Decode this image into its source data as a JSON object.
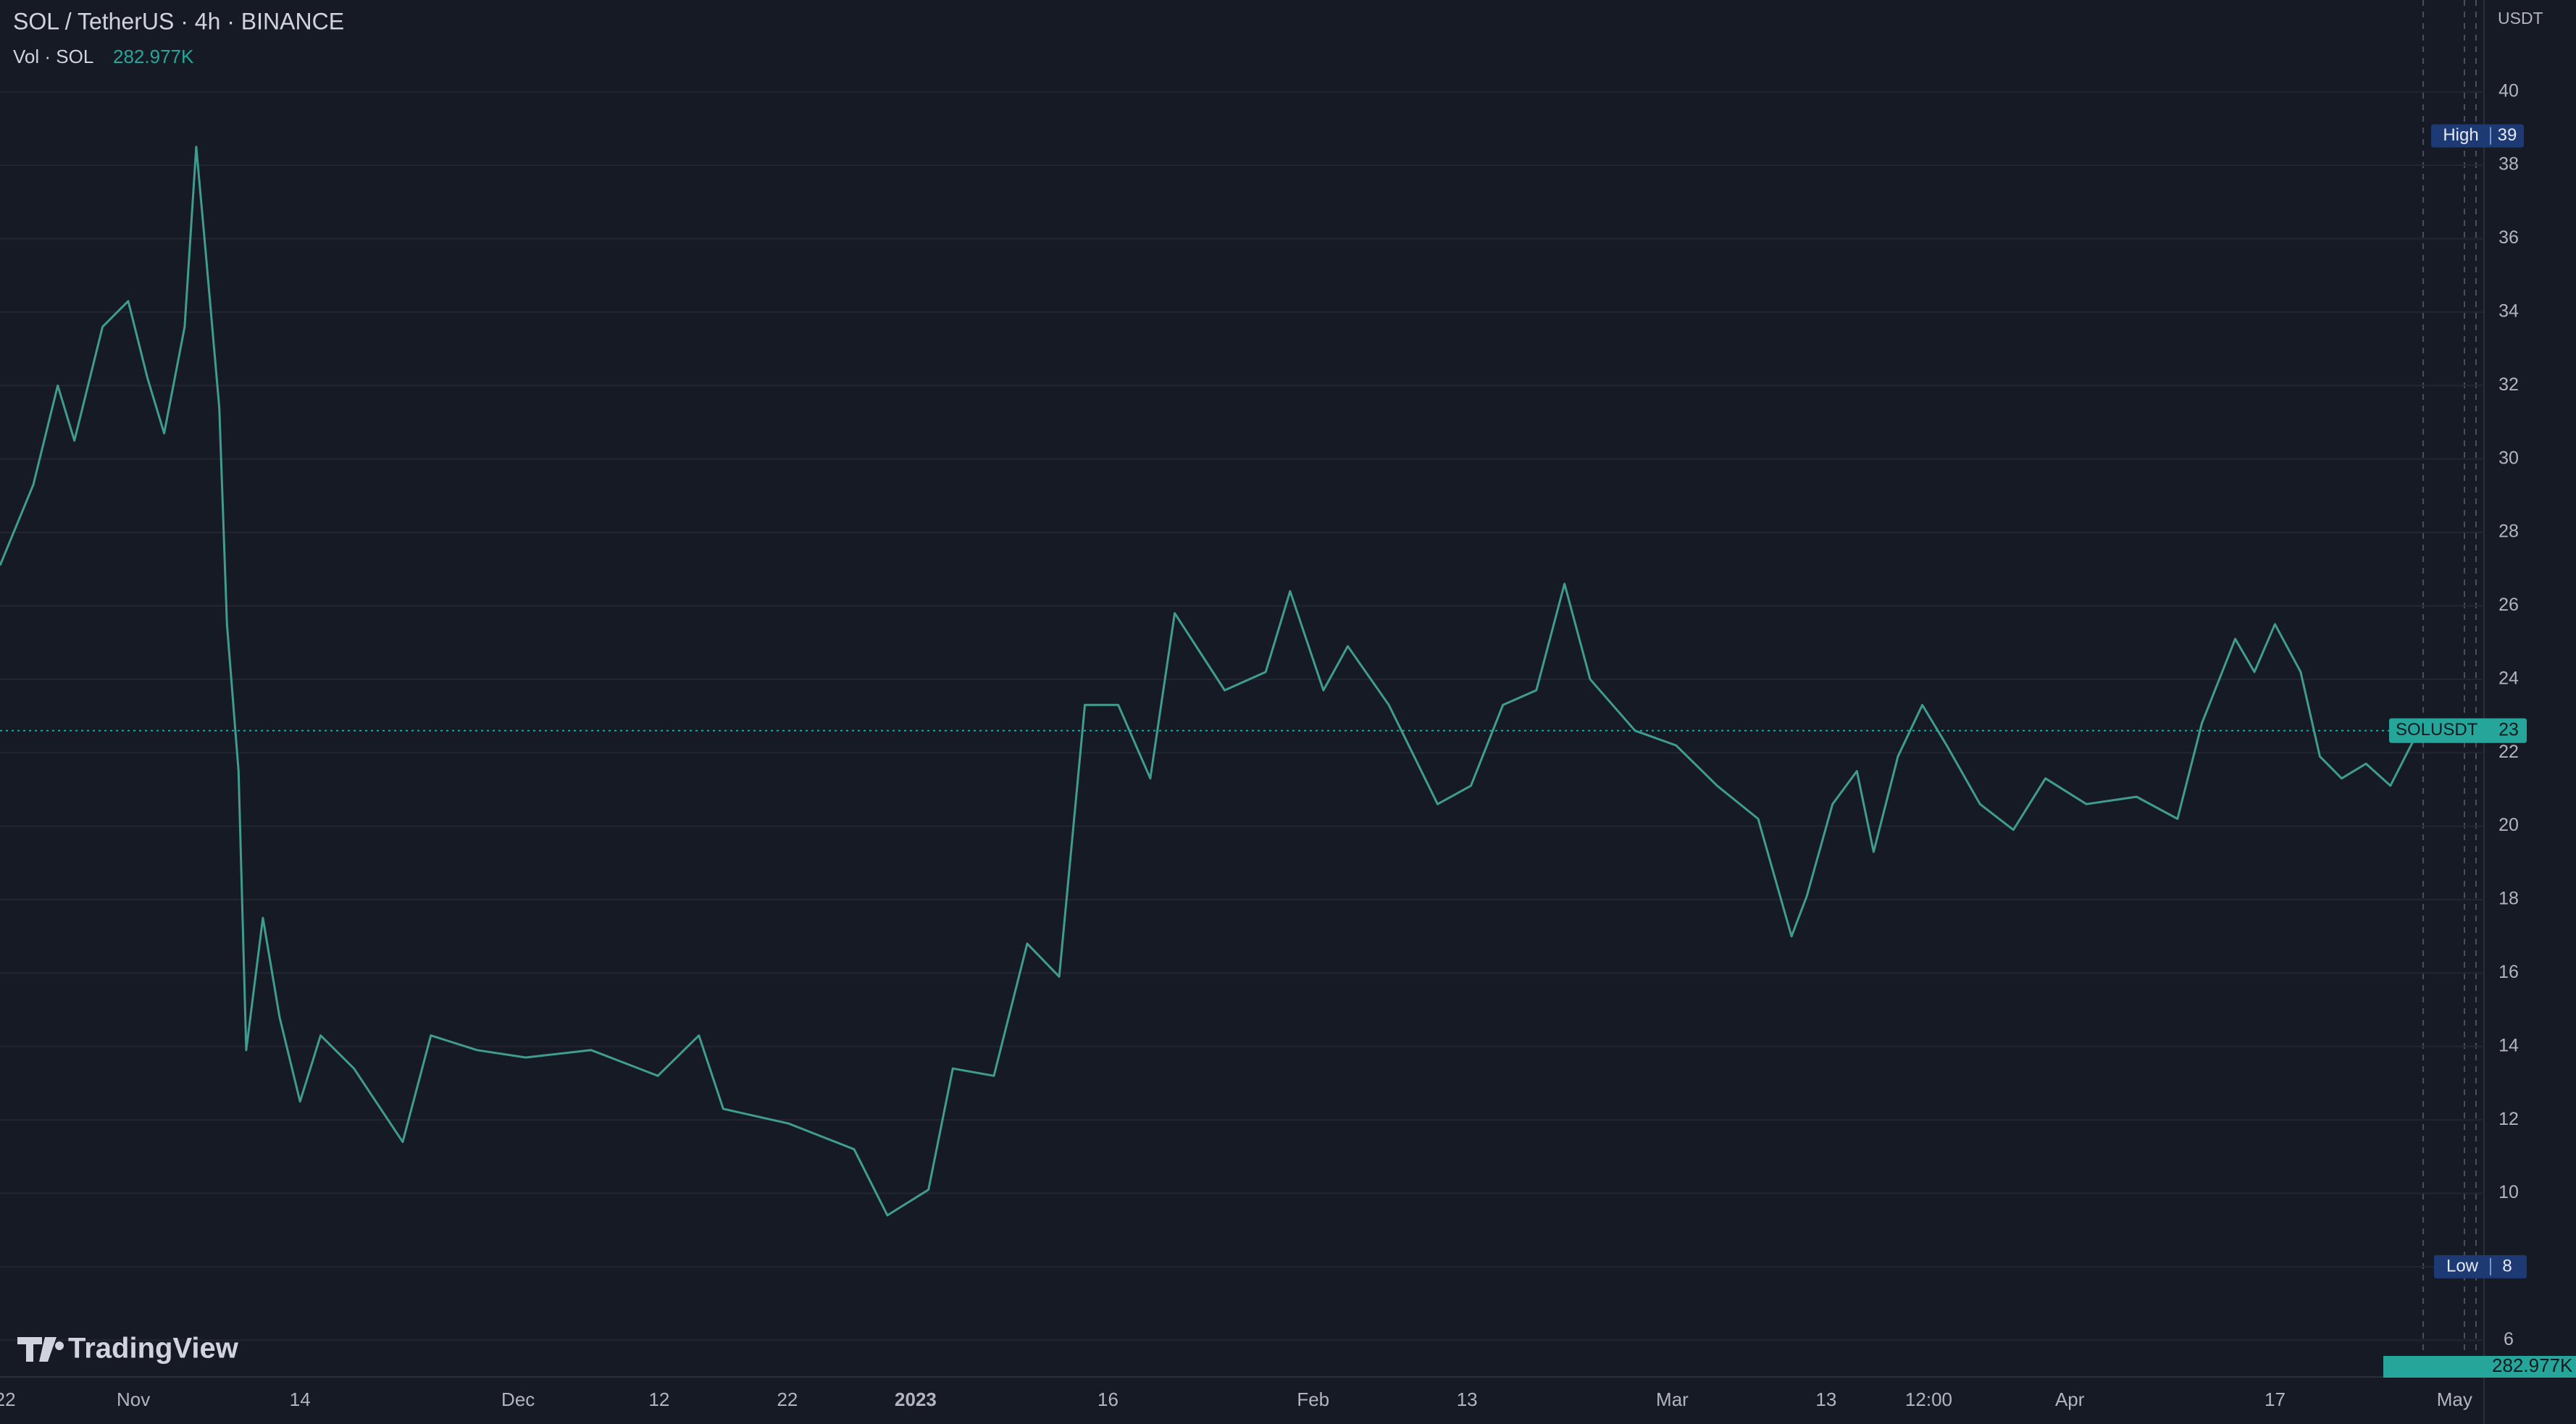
{
  "chart_data": {
    "type": "line",
    "title": "SOL / TetherUS · 4h · BINANCE",
    "volume_label": "Vol · SOL",
    "volume_value": "282.977K",
    "currency": "USDT",
    "brand": "TradingView",
    "color": "#3f9c8f",
    "grid": true,
    "x": [
      -0.4,
      2.2,
      4.1,
      5.4,
      7.6,
      9.6,
      11.1,
      12.4,
      14,
      14.9,
      15.6,
      16.7,
      17.3,
      18.2,
      18.8,
      20.1,
      21.4,
      23,
      24.6,
      27.2,
      31,
      33.2,
      36.8,
      40.6,
      45.7,
      50.9,
      54.1,
      56,
      61.1,
      66.2,
      68.8,
      72,
      73.9,
      77.1,
      79.7,
      82.2,
      84.2,
      86.8,
      89.3,
      91.2,
      95.1,
      98.3,
      100.2,
      102.8,
      104.7,
      107.9,
      111.7,
      114.3,
      116.8,
      119.4,
      121.6,
      123.6,
      127.1,
      130.3,
      133.5,
      136.7,
      139.3,
      140.5,
      142.5,
      144.4,
      145.7,
      147.6,
      149.5,
      151.4,
      154,
      156.6,
      159.1,
      162.3,
      166.2,
      169.4,
      171.3,
      173.9,
      175.4,
      177,
      179,
      180.5,
      182.2,
      184.1,
      186,
      187.9
    ],
    "values": [
      27.1,
      29.3,
      32,
      30.5,
      33.6,
      34.3,
      32.2,
      30.7,
      33.6,
      38.5,
      35.8,
      31.4,
      25.5,
      21.5,
      13.9,
      17.5,
      14.8,
      12.5,
      14.3,
      13.4,
      11.4,
      14.3,
      13.9,
      13.7,
      13.9,
      13.2,
      14.3,
      12.3,
      11.9,
      11.2,
      9.4,
      10.1,
      13.4,
      13.2,
      16.8,
      15.9,
      23.3,
      23.3,
      21.3,
      25.8,
      23.7,
      24.2,
      26.4,
      23.7,
      24.9,
      23.3,
      20.6,
      21.1,
      23.3,
      23.7,
      26.6,
      24,
      22.6,
      22.2,
      21.1,
      20.2,
      17,
      18.1,
      20.6,
      21.5,
      19.3,
      21.9,
      23.3,
      22.2,
      20.6,
      19.9,
      21.3,
      20.6,
      20.8,
      20.2,
      22.8,
      25.1,
      24.2,
      25.5,
      24.2,
      21.9,
      21.3,
      21.7,
      21.1,
      22.4
    ],
    "xlim": [
      -0.4,
      193.3
    ],
    "ylim": [
      5.0,
      42.5
    ],
    "yticks": [
      6,
      8,
      10,
      12,
      14,
      16,
      18,
      20,
      22,
      24,
      26,
      28,
      30,
      32,
      34,
      36,
      38,
      40
    ],
    "xticks": [
      {
        "value": 0,
        "label": "22"
      },
      {
        "value": 10,
        "label": "Nov"
      },
      {
        "value": 23,
        "label": "14"
      },
      {
        "value": 40,
        "label": "Dec"
      },
      {
        "value": 51,
        "label": "12"
      },
      {
        "value": 61,
        "label": "22"
      },
      {
        "value": 71,
        "label": "2023"
      },
      {
        "value": 86,
        "label": "16"
      },
      {
        "value": 102,
        "label": "Feb"
      },
      {
        "value": 114,
        "label": "13"
      },
      {
        "value": 130,
        "label": "Mar"
      },
      {
        "value": 142,
        "label": "13"
      },
      {
        "value": 150,
        "label": "12:00"
      },
      {
        "value": 161,
        "label": "Apr"
      },
      {
        "value": 177,
        "label": "17"
      },
      {
        "value": 191,
        "label": "May"
      }
    ],
    "high": {
      "text": "High",
      "value": 38.8,
      "label": "39"
    },
    "low": {
      "text": "Low",
      "value": 8.0,
      "label": "8"
    },
    "last": {
      "text": "SOLUSDT",
      "value": 22.6,
      "label": "23"
    }
  }
}
